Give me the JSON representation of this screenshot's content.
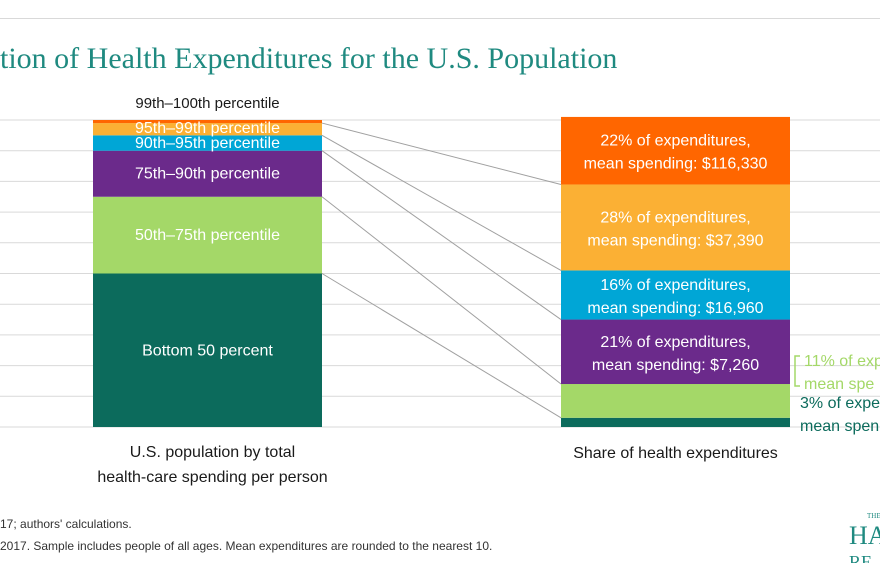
{
  "title": "tion of Health Expenditures for the U.S. Population",
  "source": "17; authors' calculations.",
  "note": "2017. Sample includes people of all ages. Mean expenditures are rounded to the nearest 10.",
  "logo": {
    "line1": "THE",
    "line2": "HA",
    "line3": "RE"
  },
  "colors": {
    "p99_100": "#ff6600",
    "p95_99": "#fbb034",
    "p90_95": "#00a6d6",
    "p75_90": "#6b2a8b",
    "p50_75": "#a4d868",
    "bottom50": "#0c6b5c",
    "grid": "#d9d9d9",
    "connector": "#a0a0a0",
    "title": "#1f8a80"
  },
  "chart_data": {
    "type": "bar",
    "ylim": [
      0,
      100
    ],
    "categories": [
      "U.S. population by total health-care spending per person",
      "Share of health expenditures"
    ],
    "xlabels": [
      [
        "U.S. population by total",
        "health-care spending per person"
      ],
      [
        "Share of health expenditures"
      ]
    ],
    "series": [
      {
        "name": "Bottom 50 percent",
        "population_share": 50,
        "expenditure_share": 3,
        "exp_label": [
          "3% of expe",
          "mean spen"
        ]
      },
      {
        "name": "50th–75th percentile",
        "population_share": 25,
        "expenditure_share": 11,
        "exp_label": [
          "11% of exp",
          "mean spe"
        ]
      },
      {
        "name": "75th–90th percentile",
        "population_share": 15,
        "expenditure_share": 21,
        "exp_label": [
          "21% of expenditures,",
          "mean spending: $7,260"
        ]
      },
      {
        "name": "90th–95th percentile",
        "population_share": 5,
        "expenditure_share": 16,
        "exp_label": [
          "16% of expenditures,",
          "mean spending: $16,960"
        ]
      },
      {
        "name": "95th–99th percentile",
        "population_share": 4,
        "expenditure_share": 28,
        "exp_label": [
          "28% of expenditures,",
          "mean spending: $37,390"
        ]
      },
      {
        "name": "99th–100th percentile",
        "population_share": 1,
        "expenditure_share": 22,
        "exp_label": [
          "22% of expenditures,",
          "mean spending: $116,330"
        ]
      }
    ]
  }
}
